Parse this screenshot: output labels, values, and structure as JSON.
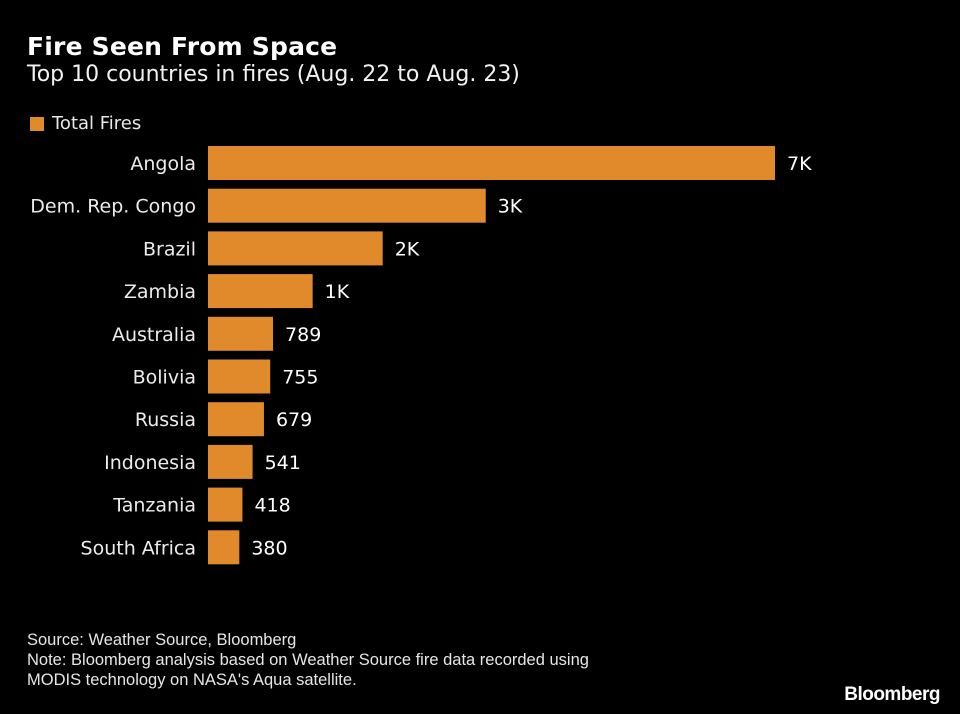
{
  "chart_data": {
    "type": "bar",
    "orientation": "horizontal",
    "title": "Fire Seen From Space",
    "subtitle": "Top 10 countries in fires (Aug. 22 to Aug. 23)",
    "legend": [
      {
        "name": "Total Fires",
        "color": "#e08a2b"
      }
    ],
    "legend_position": "top-left",
    "categories": [
      "Angola",
      "Dem. Rep. Congo",
      "Brazil",
      "Zambia",
      "Australia",
      "Bolivia",
      "Russia",
      "Indonesia",
      "Tanzania",
      "South Africa"
    ],
    "series": [
      {
        "name": "Total Fires",
        "values": [
          6880,
          3370,
          2120,
          1270,
          789,
          755,
          679,
          541,
          418,
          380
        ]
      }
    ],
    "data_labels": [
      "7K",
      "3K",
      "2K",
      "1K",
      "789",
      "755",
      "679",
      "541",
      "418",
      "380"
    ],
    "xlabel": "",
    "ylabel": "",
    "xlim": [
      0,
      6880
    ],
    "grid": false
  },
  "colors": {
    "bar": "#e08a2b",
    "background": "#000000",
    "text": "#ffffff"
  },
  "footer": {
    "source": "Source: Weather Source, Bloomberg",
    "note_line1": "Note: Bloomberg analysis based on Weather Source fire data recorded using",
    "note_line2": "MODIS technology on NASA's Aqua satellite.",
    "brand": "Bloomberg"
  }
}
